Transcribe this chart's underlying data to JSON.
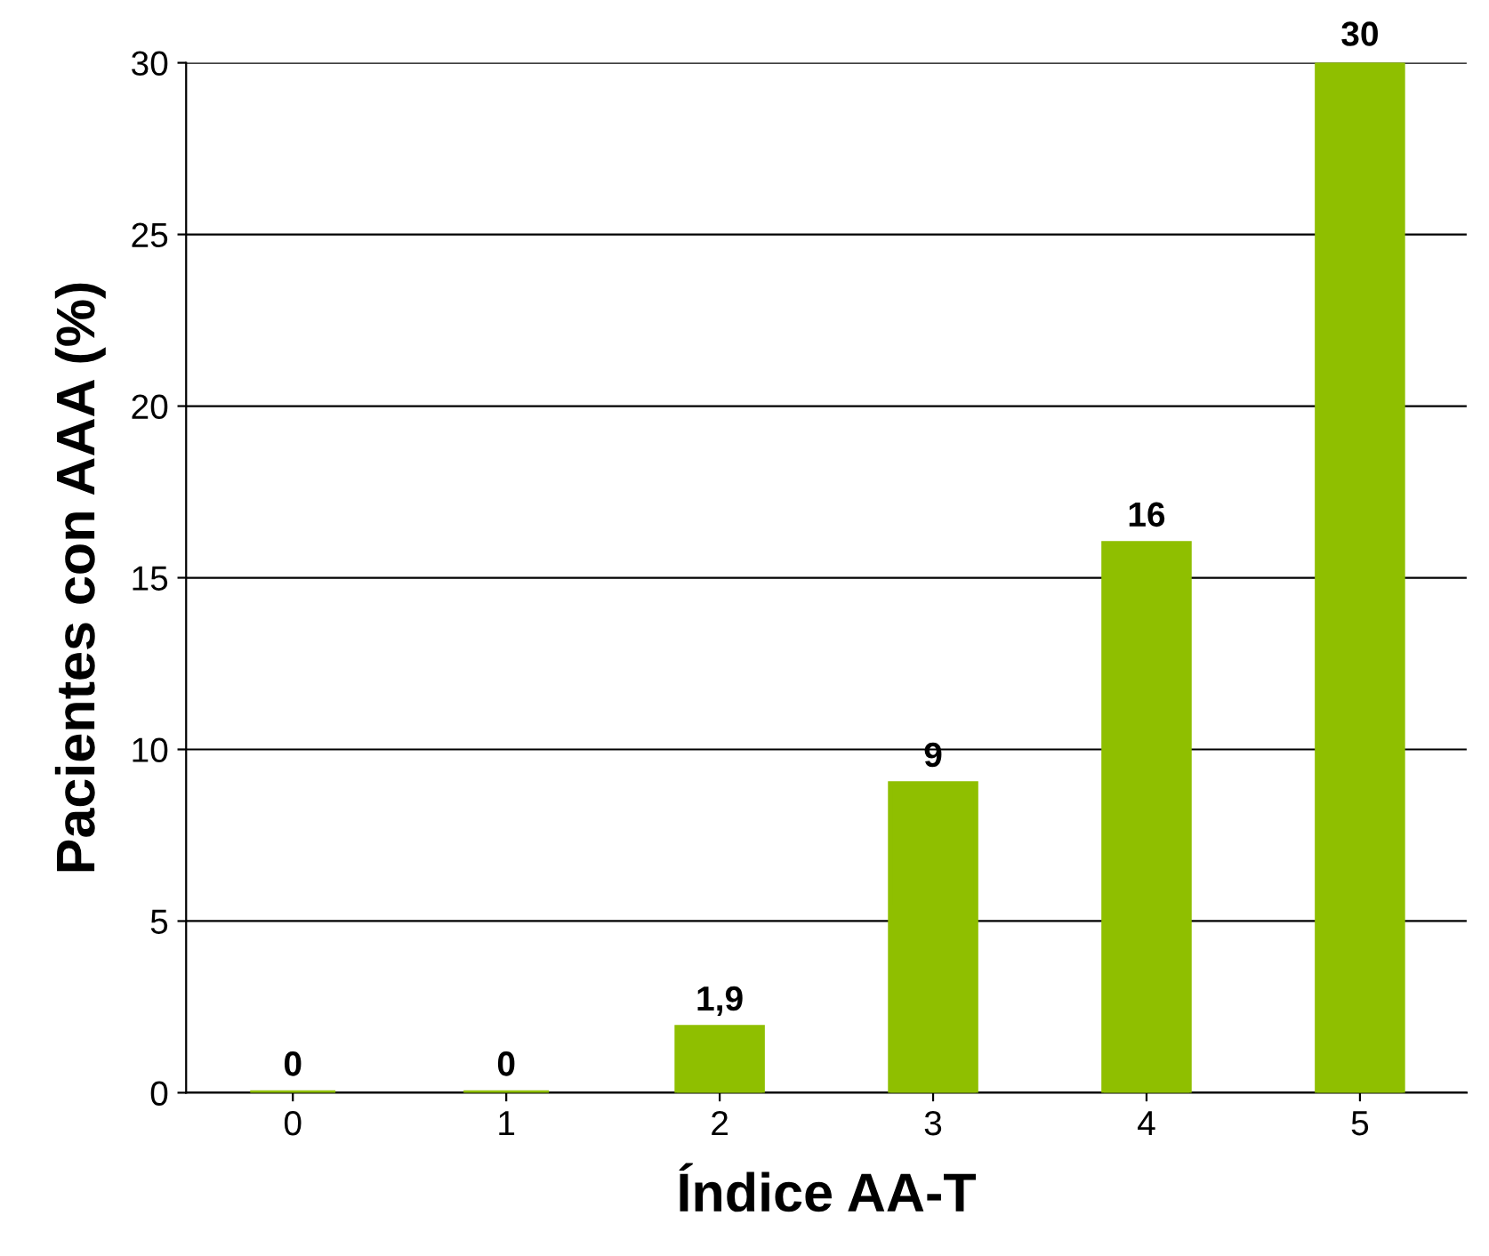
{
  "chart_data": {
    "type": "bar",
    "xlabel": "Índice AA-T",
    "ylabel": "Pacientes con AAA (%)",
    "categories": [
      "0",
      "1",
      "2",
      "3",
      "4",
      "5"
    ],
    "values": [
      0,
      0,
      1.9,
      9,
      16,
      30
    ],
    "value_labels": [
      "0",
      "0",
      "1,9",
      "9",
      "16",
      "30"
    ],
    "color": "#8fbf00",
    "ylim": [
      0,
      30
    ],
    "yticks": [
      0,
      5,
      10,
      15,
      20,
      25,
      30
    ],
    "grid": "y"
  }
}
